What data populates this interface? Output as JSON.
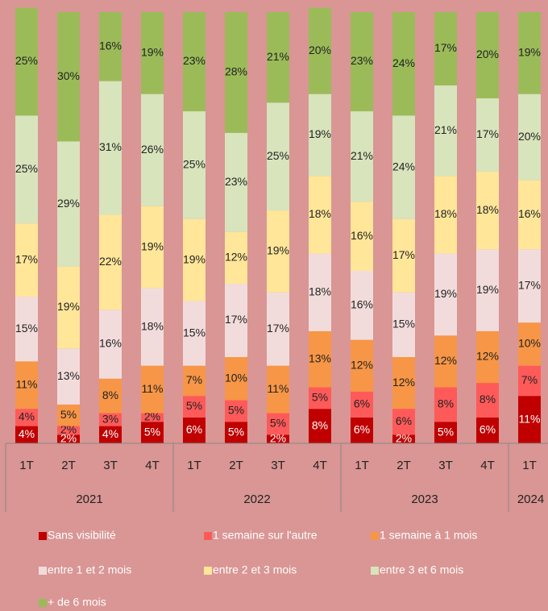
{
  "chart_data": {
    "type": "stacked-bar-100",
    "groups": [
      {
        "label": "2021",
        "categories": [
          "1T",
          "2T",
          "3T",
          "4T"
        ]
      },
      {
        "label": "2022",
        "categories": [
          "1T",
          "2T",
          "3T",
          "4T"
        ]
      },
      {
        "label": "2023",
        "categories": [
          "1T",
          "2T",
          "3T",
          "4T"
        ]
      },
      {
        "label": "2024",
        "categories": [
          "1T"
        ]
      }
    ],
    "ylim": [
      0,
      100
    ],
    "series": [
      {
        "name": "Sans visibilité",
        "color": "#c00000",
        "values": [
          4,
          2,
          4,
          5,
          6,
          5,
          2,
          8,
          6,
          2,
          5,
          6,
          11
        ],
        "value_labels": [
          "4%",
          "2%",
          "4%",
          "5%",
          "6%",
          "5%",
          "2%",
          "8%",
          "6%",
          "2%",
          "5%",
          "6%",
          "11%"
        ]
      },
      {
        "name": "1 semaine sur l'autre",
        "color": "#ff5a5a",
        "values": [
          4,
          2,
          3,
          2,
          5,
          5,
          5,
          5,
          6,
          6,
          8,
          8,
          7
        ],
        "value_labels": [
          "4%",
          "2%",
          "3%",
          "2%",
          "5%",
          "5%",
          "5%",
          "5%",
          "6%",
          "6%",
          "8%",
          "8%",
          "7%"
        ]
      },
      {
        "name": "1 semaine à 1 mois",
        "color": "#f79646",
        "values": [
          11,
          5,
          8,
          11,
          7,
          10,
          11,
          13,
          12,
          12,
          12,
          12,
          10
        ],
        "value_labels": [
          "11%",
          "5%",
          "8%",
          "11%",
          "7%",
          "10%",
          "11%",
          "13%",
          "12%",
          "12%",
          "12%",
          "12%",
          "10%"
        ]
      },
      {
        "name": "entre 1 et 2 mois",
        "color": "#f2dcdb",
        "values": [
          15,
          13,
          16,
          18,
          15,
          17,
          17,
          18,
          16,
          15,
          19,
          19,
          17
        ],
        "value_labels": [
          "15%",
          "13%",
          "16%",
          "18%",
          "15%",
          "17%",
          "17%",
          "18%",
          "16%",
          "15%",
          "19%",
          "19%",
          "17%"
        ]
      },
      {
        "name": "entre 2 et 3 mois",
        "color": "#ffe699",
        "values": [
          17,
          19,
          22,
          19,
          19,
          12,
          19,
          18,
          16,
          17,
          18,
          18,
          16
        ],
        "value_labels": [
          "17%",
          "19%",
          "22%",
          "19%",
          "19%",
          "12%",
          "19%",
          "18%",
          "16%",
          "17%",
          "18%",
          "18%",
          "16%"
        ]
      },
      {
        "name": "entre 3 et 6 mois",
        "color": "#d8e4bc",
        "values": [
          25,
          29,
          31,
          26,
          25,
          23,
          25,
          19,
          21,
          24,
          21,
          17,
          20
        ],
        "value_labels": [
          "25%",
          "29%",
          "31%",
          "26%",
          "25%",
          "23%",
          "25%",
          "19%",
          "21%",
          "24%",
          "21%",
          "17%",
          "20%"
        ]
      },
      {
        "name": "+ de 6 mois",
        "color": "#9bbb59",
        "values": [
          25,
          30,
          16,
          19,
          23,
          28,
          21,
          20,
          23,
          24,
          17,
          20,
          19
        ],
        "value_labels": [
          "25%",
          "30%",
          "16%",
          "19%",
          "23%",
          "28%",
          "21%",
          "20%",
          "23%",
          "24%",
          "17%",
          "20%",
          "19%"
        ]
      }
    ]
  }
}
